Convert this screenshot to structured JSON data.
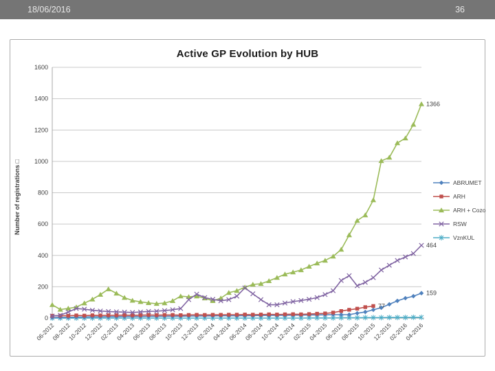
{
  "header": {
    "date": "18/06/2016",
    "page_number": "36"
  },
  "chart": {
    "title": "Active GP Evolution by HUB",
    "y_axis_label": "Number of registrations □"
  },
  "colors": {
    "header_bar": "#757575",
    "header_text": "#e8e8e8",
    "chart_border": "#ababab",
    "gridline": "#c9c9c9",
    "axis_line": "#a8a8a8",
    "axis_text": "#3f3f3f",
    "abrumet": "#4f81bd",
    "arh": "#c0504d",
    "arh_cozo": "#9bbb59",
    "rsw": "#8064a2",
    "vznkul": "#4bacc6"
  },
  "chart_data": {
    "type": "line",
    "title": "Active GP Evolution by HUB",
    "xlabel": "",
    "ylabel": "Number of registrations □",
    "ylim": [
      0,
      1600
    ],
    "ytick_step": 200,
    "grid": true,
    "legend_position": "right",
    "x": [
      "06-2012",
      "07-2012",
      "08-2012",
      "09-2012",
      "10-2012",
      "11-2012",
      "12-2012",
      "01-2013",
      "02-2013",
      "03-2013",
      "04-2013",
      "05-2013",
      "06-2013",
      "07-2013",
      "08-2013",
      "09-2013",
      "10-2013",
      "11-2013",
      "12-2013",
      "01-2014",
      "02-2014",
      "03-2014",
      "04-2014",
      "05-2014",
      "06-2014",
      "07-2014",
      "08-2014",
      "09-2014",
      "10-2014",
      "11-2014",
      "12-2014",
      "01-2015",
      "02-2015",
      "03-2015",
      "04-2015",
      "05-2015",
      "06-2015",
      "07-2015",
      "08-2015",
      "09-2015",
      "10-2015",
      "11-2015",
      "12-2015",
      "01-2016",
      "02-2016",
      "03-2016",
      "04-2016"
    ],
    "x_tick_every": 2,
    "series": [
      {
        "name": "ABRUMET",
        "color": "#4f81bd",
        "marker": "diamond",
        "values": [
          3,
          4,
          5,
          6,
          7,
          8,
          8,
          9,
          9,
          10,
          10,
          10,
          11,
          11,
          12,
          12,
          12,
          13,
          13,
          14,
          14,
          15,
          15,
          15,
          16,
          16,
          17,
          17,
          18,
          18,
          19,
          19,
          20,
          20,
          21,
          22,
          22,
          22,
          31,
          39,
          53,
          66,
          88,
          110,
          127,
          140,
          159
        ]
      },
      {
        "name": "ARH",
        "color": "#c0504d",
        "marker": "square",
        "values": [
          15,
          16,
          15,
          17,
          16,
          18,
          17,
          18,
          18,
          19,
          18,
          19,
          20,
          19,
          20,
          20,
          19,
          20,
          21,
          20,
          21,
          21,
          22,
          22,
          23,
          22,
          23,
          24,
          23,
          24,
          25,
          24,
          26,
          28,
          30,
          35,
          45,
          53,
          60,
          70,
          77,
          null,
          null,
          null,
          null,
          null,
          null
        ]
      },
      {
        "name": "ARH + Cozo",
        "color": "#9bbb59",
        "marker": "triangle",
        "values": [
          85,
          55,
          62,
          70,
          95,
          120,
          150,
          185,
          158,
          130,
          112,
          104,
          97,
          92,
          96,
          110,
          140,
          136,
          140,
          127,
          110,
          127,
          162,
          175,
          197,
          215,
          219,
          237,
          258,
          280,
          293,
          307,
          329,
          350,
          368,
          394,
          438,
          530,
          622,
          657,
          753,
          1003,
          1025,
          1117,
          1148,
          1235,
          1366
        ]
      },
      {
        "name": "RSW",
        "color": "#8064a2",
        "marker": "x",
        "values": [
          13,
          18,
          39,
          61,
          57,
          50,
          45,
          42,
          40,
          38,
          36,
          39,
          43,
          44,
          48,
          53,
          61,
          118,
          153,
          131,
          120,
          110,
          118,
          140,
          193,
          155,
          118,
          85,
          85,
          96,
          105,
          112,
          120,
          131,
          150,
          175,
          240,
          271,
          206,
          228,
          258,
          307,
          337,
          368,
          390,
          412,
          464
        ]
      },
      {
        "name": "VznKUL",
        "color": "#4bacc6",
        "marker": "star",
        "values": [
          0,
          0,
          0,
          0,
          0,
          0,
          0,
          0,
          0,
          0,
          0,
          0,
          0,
          0,
          0,
          0,
          0,
          0,
          0,
          0,
          0,
          0,
          0,
          0,
          0,
          0,
          0,
          0,
          0,
          0,
          0,
          0,
          1,
          1,
          1,
          1,
          2,
          2,
          2,
          3,
          3,
          3,
          4,
          4,
          4,
          5,
          5
        ]
      }
    ],
    "point_labels": [
      {
        "series": "ARH + Cozo",
        "text": "1366"
      },
      {
        "series": "RSW",
        "text": "464"
      },
      {
        "series": "ABRUMET",
        "text": "159"
      },
      {
        "series": "ARH",
        "text": "77"
      }
    ]
  }
}
